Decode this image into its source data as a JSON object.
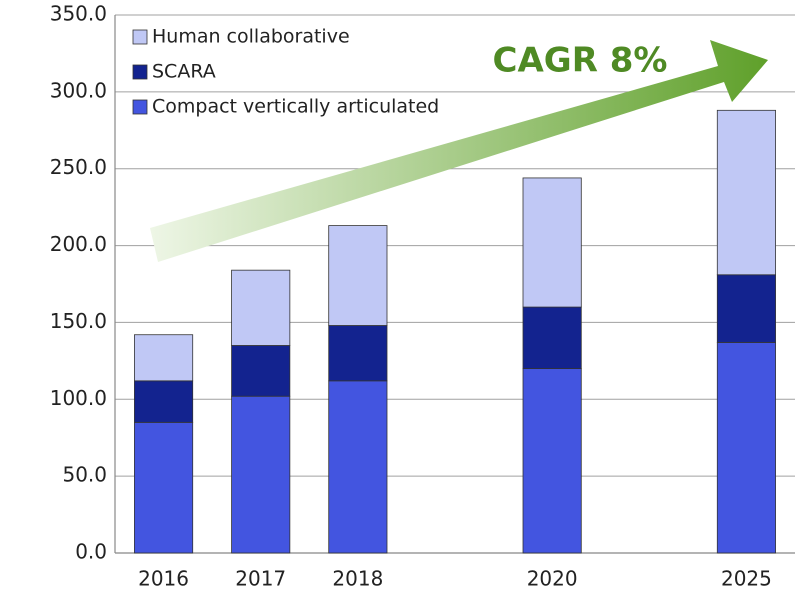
{
  "chart_data": {
    "type": "bar",
    "stacked": true,
    "categories": [
      "2016",
      "2017",
      "2018",
      null,
      "2020",
      null,
      "2025"
    ],
    "series": [
      {
        "name": "Compact vertically articulated",
        "color": "#4355e0",
        "values": [
          85,
          102,
          112,
          null,
          120,
          null,
          137
        ]
      },
      {
        "name": "SCARA",
        "color": "#13238f",
        "values": [
          27,
          33,
          36,
          null,
          40,
          null,
          44
        ]
      },
      {
        "name": "Human collaborative",
        "color": "#c0c8f5",
        "values": [
          30,
          49,
          65,
          null,
          84,
          null,
          107
        ]
      }
    ],
    "ylim": [
      0,
      350
    ],
    "yticks": [
      {
        "value": 0,
        "label": "0.0"
      },
      {
        "value": 50,
        "label": "50.0"
      },
      {
        "value": 100,
        "label": "100.0"
      },
      {
        "value": 150,
        "label": "150.0"
      },
      {
        "value": 200,
        "label": "200.0"
      },
      {
        "value": 250,
        "label": "250.0"
      },
      {
        "value": 300,
        "label": "300.0"
      },
      {
        "value": 350,
        "label": "350.0"
      }
    ],
    "grid": true,
    "legend": "top-left",
    "annotation": "CAGR 8%"
  }
}
